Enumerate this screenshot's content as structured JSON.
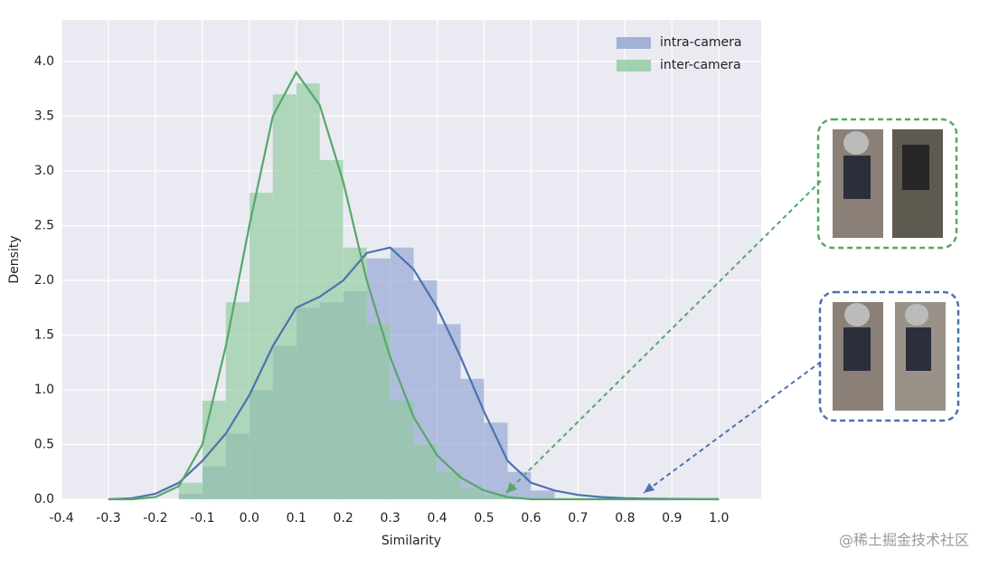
{
  "chart_data": {
    "type": "histogram",
    "xlabel": "Similarity",
    "ylabel": "Density",
    "xlim": [
      -0.4,
      1.09
    ],
    "ylim": [
      0,
      4.38
    ],
    "xticks": [
      -0.4,
      -0.3,
      -0.2,
      -0.1,
      {
        "value": 0,
        "label": "0.0"
      },
      0.1,
      0.2,
      0.3,
      0.4,
      0.5,
      0.6,
      0.7,
      0.8,
      0.9,
      {
        "value": 1,
        "label": "1.0"
      }
    ],
    "yticks": [
      {
        "value": 0,
        "label": "0.0"
      },
      0.5,
      {
        "value": 1,
        "label": "1.0"
      },
      1.5,
      {
        "value": 2,
        "label": "2.0"
      },
      2.5,
      {
        "value": 3,
        "label": "3.0"
      },
      3.5,
      {
        "value": 4,
        "label": "4.0"
      }
    ],
    "grid": true,
    "legend": "upper right",
    "kde_x": [
      -0.3,
      -0.25,
      -0.2,
      -0.15,
      -0.1,
      -0.05,
      0,
      0.05,
      0.1,
      0.15,
      0.2,
      0.25,
      0.3,
      0.35,
      0.4,
      0.45,
      0.5,
      0.55,
      0.6,
      0.65,
      0.7,
      0.75,
      0.8,
      0.85,
      0.9,
      0.95,
      1.0
    ],
    "series": [
      {
        "name": "intra-camera",
        "color": "#4c72b0",
        "fill": "#8fa3d1",
        "bins": [
          -0.15,
          -0.1,
          -0.05,
          0,
          0.05,
          0.1,
          0.15,
          0.2,
          0.25,
          0.3,
          0.35,
          0.4,
          0.45,
          0.5,
          0.55,
          0.6,
          0.65
        ],
        "values": [
          0.05,
          0.3,
          0.6,
          1.0,
          1.4,
          1.75,
          1.8,
          1.9,
          2.2,
          2.3,
          2.0,
          1.6,
          1.1,
          0.7,
          0.25,
          0.08
        ],
        "kde": [
          0,
          0.01,
          0.05,
          0.15,
          0.35,
          0.6,
          0.95,
          1.4,
          1.75,
          1.85,
          2.0,
          2.25,
          2.3,
          2.1,
          1.75,
          1.3,
          0.8,
          0.35,
          0.15,
          0.08,
          0.04,
          0.02,
          0.01,
          0.005,
          0.003,
          0.002,
          0.001
        ]
      },
      {
        "name": "inter-camera",
        "color": "#55a868",
        "fill": "#8fc99b",
        "bins": [
          -0.15,
          -0.1,
          -0.05,
          0,
          0.05,
          0.1,
          0.15,
          0.2,
          0.25,
          0.3,
          0.35,
          0.4,
          0.45,
          0.5,
          0.55,
          0.6
        ],
        "values": [
          0.15,
          0.9,
          1.8,
          2.8,
          3.7,
          3.8,
          3.1,
          2.3,
          1.6,
          0.9,
          0.5,
          0.25,
          0.1,
          0.04,
          0.01
        ],
        "kde": [
          0,
          0,
          0.02,
          0.12,
          0.5,
          1.4,
          2.5,
          3.5,
          3.9,
          3.6,
          2.9,
          2.0,
          1.3,
          0.75,
          0.4,
          0.2,
          0.08,
          0.02,
          0,
          0,
          0,
          0,
          0,
          0,
          0,
          0,
          0
        ]
      }
    ]
  },
  "watermark": "@稀土掘金技术社区"
}
